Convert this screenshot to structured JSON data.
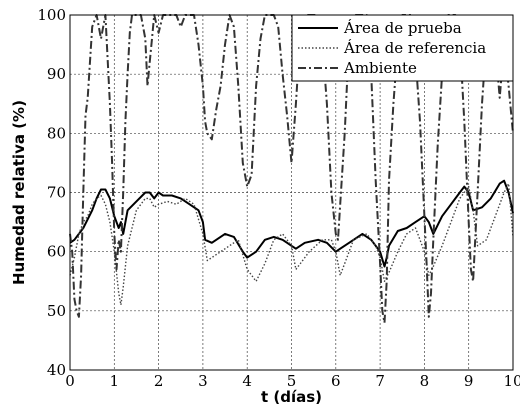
{
  "chart_data": {
    "type": "line",
    "title": "",
    "xlabel": "t (días)",
    "ylabel": "Humedad relativa (%)",
    "xlim": [
      0,
      10
    ],
    "ylim": [
      40,
      100
    ],
    "xticks": [
      "0",
      "1",
      "2",
      "3",
      "4",
      "5",
      "6",
      "7",
      "8",
      "9",
      "10"
    ],
    "yticks": [
      "40",
      "50",
      "60",
      "70",
      "80",
      "90",
      "100"
    ],
    "grid": true,
    "legend_position": "top-right",
    "series": [
      {
        "name": "Área de prueba",
        "style": "solid",
        "color": "#000000",
        "x": [
          0,
          0.1,
          0.3,
          0.5,
          0.6,
          0.7,
          0.8,
          0.9,
          1.0,
          1.1,
          1.15,
          1.2,
          1.3,
          1.5,
          1.7,
          1.8,
          1.9,
          2.0,
          2.1,
          2.3,
          2.5,
          2.7,
          2.9,
          3.0,
          3.05,
          3.2,
          3.5,
          3.7,
          3.9,
          4.0,
          4.2,
          4.4,
          4.6,
          4.8,
          4.9,
          5.0,
          5.1,
          5.3,
          5.6,
          5.8,
          6.0,
          6.1,
          6.3,
          6.6,
          6.8,
          7.0,
          7.1,
          7.15,
          7.2,
          7.4,
          7.6,
          7.8,
          8.0,
          8.1,
          8.2,
          8.4,
          8.6,
          8.8,
          8.9,
          9.0,
          9.1,
          9.3,
          9.5,
          9.7,
          9.8,
          9.9,
          10.0
        ],
        "y": [
          61.5,
          62,
          64,
          67,
          69,
          70.5,
          70.5,
          69,
          66,
          64,
          65,
          63,
          67,
          68.5,
          70,
          70,
          69,
          70,
          69.5,
          69.5,
          69,
          68,
          67,
          65,
          62,
          61.5,
          63,
          62.5,
          60,
          59,
          60,
          62,
          62.5,
          62,
          61.5,
          61,
          60.5,
          61.5,
          62,
          61.5,
          60,
          60.5,
          61.5,
          63,
          62,
          60,
          57.5,
          59,
          61,
          63.5,
          64,
          65,
          66,
          65,
          63,
          66,
          68,
          70,
          71,
          70,
          67,
          67.5,
          69,
          71.5,
          72,
          70,
          66.5
        ]
      },
      {
        "name": "Área de referencia",
        "style": "dotted",
        "color": "#444444",
        "x": [
          0,
          0.1,
          0.2,
          0.3,
          0.4,
          0.5,
          0.6,
          0.7,
          0.8,
          0.9,
          1.0,
          1.1,
          1.15,
          1.2,
          1.3,
          1.5,
          1.7,
          1.8,
          1.9,
          2.0,
          2.2,
          2.4,
          2.6,
          2.8,
          3.0,
          3.1,
          3.2,
          3.4,
          3.6,
          3.8,
          4.0,
          4.2,
          4.4,
          4.6,
          4.8,
          5.0,
          5.1,
          5.2,
          5.4,
          5.7,
          5.9,
          6.0,
          6.1,
          6.2,
          6.4,
          6.7,
          6.9,
          7.0,
          7.1,
          7.2,
          7.4,
          7.6,
          7.8,
          7.9,
          8.0,
          8.1,
          8.2,
          8.4,
          8.6,
          8.8,
          9.0,
          9.1,
          9.2,
          9.4,
          9.6,
          9.8,
          9.9,
          10.0
        ],
        "y": [
          56,
          59,
          63,
          65,
          66,
          68,
          69,
          69.5,
          68,
          65,
          60,
          53,
          51,
          54,
          61,
          67,
          69,
          69,
          67.5,
          68,
          68.5,
          68,
          69,
          68,
          63,
          58.5,
          59,
          60,
          61,
          62,
          57,
          55,
          58,
          62,
          63,
          61,
          57,
          58,
          60,
          62,
          62,
          60,
          56,
          58,
          62,
          63,
          61,
          59,
          55,
          56.5,
          60,
          63,
          64,
          62,
          60,
          56,
          57.5,
          61,
          65,
          69,
          71,
          67,
          61,
          62,
          66,
          70,
          71.5,
          62.5
        ]
      },
      {
        "name": "Ambiente",
        "style": "dashdot",
        "color": "#333333",
        "x": [
          0,
          0.05,
          0.1,
          0.15,
          0.2,
          0.25,
          0.3,
          0.35,
          0.4,
          0.5,
          0.6,
          0.65,
          0.7,
          0.8,
          0.9,
          0.95,
          1.0,
          1.05,
          1.1,
          1.15,
          1.2,
          1.25,
          1.3,
          1.35,
          1.4,
          1.5,
          1.6,
          1.7,
          1.75,
          1.8,
          1.85,
          1.9,
          2.0,
          2.1,
          2.2,
          2.3,
          2.4,
          2.5,
          2.6,
          2.7,
          2.8,
          2.9,
          3.0,
          3.05,
          3.1,
          3.2,
          3.3,
          3.4,
          3.5,
          3.6,
          3.7,
          3.8,
          3.9,
          4.0,
          4.1,
          4.2,
          4.3,
          4.4,
          4.5,
          4.6,
          4.7,
          4.8,
          4.9,
          5.0,
          5.1,
          5.2,
          5.3,
          5.4,
          5.5,
          5.6,
          5.7,
          5.8,
          5.9,
          6.0,
          6.05,
          6.1,
          6.2,
          6.3,
          6.4,
          6.5,
          6.6,
          6.7,
          6.8,
          6.9,
          7.0,
          7.05,
          7.1,
          7.15,
          7.2,
          7.3,
          7.4,
          7.5,
          7.6,
          7.7,
          7.8,
          7.9,
          8.0,
          8.05,
          8.1,
          8.15,
          8.2,
          8.3,
          8.4,
          8.5,
          8.6,
          8.7,
          8.8,
          8.9,
          9.0,
          9.05,
          9.1,
          9.2,
          9.3,
          9.4,
          9.5,
          9.6,
          9.7,
          9.8,
          9.9,
          10.0
        ],
        "y": [
          63,
          60,
          52,
          50,
          49,
          56,
          70,
          83,
          86,
          98,
          100,
          98,
          96,
          100,
          85,
          75,
          63,
          57,
          62,
          60,
          70,
          82,
          90,
          97,
          100,
          100,
          100,
          96,
          88,
          92,
          96,
          100,
          97,
          100,
          100,
          100,
          100,
          98,
          100,
          100,
          100,
          95,
          88,
          82,
          80,
          79,
          84,
          88,
          95,
          100,
          98,
          88,
          75,
          71,
          73,
          88,
          96,
          100,
          100,
          100,
          98,
          90,
          83,
          75,
          85,
          97,
          100,
          100,
          100,
          100,
          95,
          85,
          70,
          63,
          62,
          68,
          80,
          96,
          100,
          100,
          100,
          100,
          90,
          72,
          58,
          50,
          48,
          55,
          72,
          85,
          95,
          100,
          100,
          100,
          93,
          82,
          66,
          58,
          49,
          53,
          62,
          78,
          90,
          100,
          100,
          100,
          96,
          82,
          65,
          57,
          55,
          70,
          85,
          96,
          100,
          95,
          86,
          95,
          88,
          80
        ]
      }
    ]
  }
}
